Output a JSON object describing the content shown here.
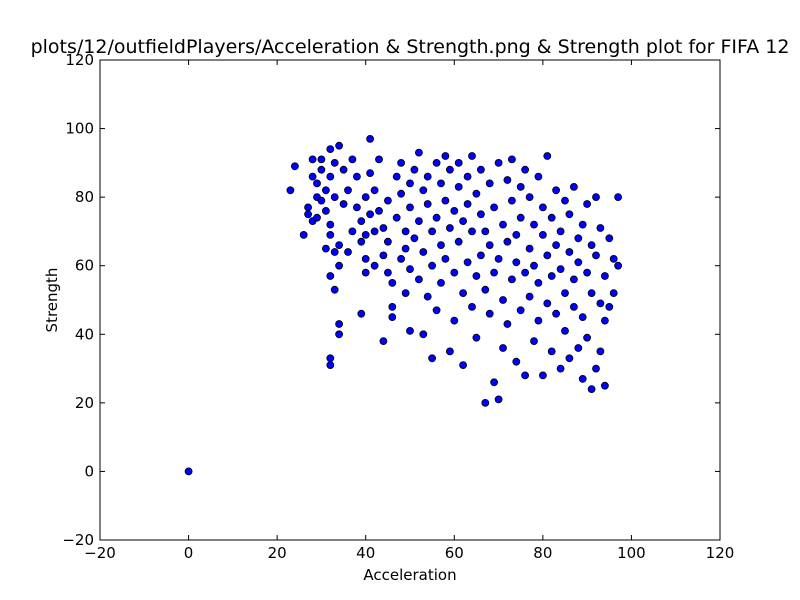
{
  "chart_data": {
    "type": "scatter",
    "title": "plots/12/outfieldPlayers/Acceleration & Strength.png & Strength plot for FIFA 12",
    "xlabel": "Acceleration",
    "ylabel": "Strength",
    "xlim": [
      -20,
      120
    ],
    "ylim": [
      -20,
      120
    ],
    "xticks": [
      -20,
      0,
      20,
      40,
      60,
      80,
      100,
      120
    ],
    "yticks": [
      -20,
      0,
      20,
      40,
      60,
      80,
      100,
      120
    ],
    "grid": false,
    "marker_color": "#0000ff",
    "series": [
      {
        "points": [
          [
            0,
            0
          ],
          [
            23,
            82
          ],
          [
            24,
            89
          ],
          [
            26,
            69
          ],
          [
            27,
            77
          ],
          [
            27,
            75
          ],
          [
            28,
            73
          ],
          [
            28,
            86
          ],
          [
            28,
            91
          ],
          [
            29,
            80
          ],
          [
            29,
            84
          ],
          [
            29,
            74
          ],
          [
            30,
            79
          ],
          [
            30,
            88
          ],
          [
            30,
            91
          ],
          [
            31,
            65
          ],
          [
            31,
            82
          ],
          [
            31,
            76
          ],
          [
            32,
            94
          ],
          [
            32,
            86
          ],
          [
            32,
            72
          ],
          [
            32,
            69
          ],
          [
            32,
            33
          ],
          [
            32,
            31
          ],
          [
            32,
            57
          ],
          [
            33,
            64
          ],
          [
            33,
            53
          ],
          [
            33,
            90
          ],
          [
            33,
            80
          ],
          [
            34,
            60
          ],
          [
            34,
            43
          ],
          [
            34,
            40
          ],
          [
            34,
            66
          ],
          [
            34,
            95
          ],
          [
            35,
            88
          ],
          [
            35,
            78
          ],
          [
            36,
            64
          ],
          [
            36,
            82
          ],
          [
            37,
            91
          ],
          [
            37,
            70
          ],
          [
            38,
            86
          ],
          [
            38,
            77
          ],
          [
            39,
            67
          ],
          [
            39,
            73
          ],
          [
            39,
            46
          ],
          [
            40,
            62
          ],
          [
            40,
            69
          ],
          [
            40,
            58
          ],
          [
            40,
            80
          ],
          [
            41,
            97
          ],
          [
            41,
            87
          ],
          [
            41,
            75
          ],
          [
            42,
            60
          ],
          [
            42,
            70
          ],
          [
            42,
            82
          ],
          [
            43,
            91
          ],
          [
            43,
            76
          ],
          [
            44,
            38
          ],
          [
            44,
            63
          ],
          [
            44,
            71
          ],
          [
            45,
            79
          ],
          [
            45,
            58
          ],
          [
            45,
            67
          ],
          [
            46,
            48
          ],
          [
            46,
            45
          ],
          [
            46,
            55
          ],
          [
            47,
            74
          ],
          [
            47,
            86
          ],
          [
            48,
            62
          ],
          [
            48,
            81
          ],
          [
            48,
            90
          ],
          [
            49,
            52
          ],
          [
            49,
            70
          ],
          [
            49,
            65
          ],
          [
            50,
            84
          ],
          [
            50,
            77
          ],
          [
            50,
            41
          ],
          [
            50,
            59
          ],
          [
            51,
            88
          ],
          [
            51,
            68
          ],
          [
            52,
            73
          ],
          [
            52,
            56
          ],
          [
            52,
            93
          ],
          [
            53,
            40
          ],
          [
            53,
            64
          ],
          [
            53,
            82
          ],
          [
            54,
            78
          ],
          [
            54,
            51
          ],
          [
            54,
            86
          ],
          [
            55,
            70
          ],
          [
            55,
            33
          ],
          [
            55,
            60
          ],
          [
            56,
            90
          ],
          [
            56,
            74
          ],
          [
            56,
            47
          ],
          [
            57,
            66
          ],
          [
            57,
            84
          ],
          [
            57,
            55
          ],
          [
            58,
            79
          ],
          [
            58,
            62
          ],
          [
            58,
            92
          ],
          [
            59,
            35
          ],
          [
            59,
            71
          ],
          [
            59,
            88
          ],
          [
            60,
            58
          ],
          [
            60,
            76
          ],
          [
            60,
            44
          ],
          [
            61,
            83
          ],
          [
            61,
            67
          ],
          [
            61,
            90
          ],
          [
            62,
            52
          ],
          [
            62,
            73
          ],
          [
            62,
            31
          ],
          [
            63,
            86
          ],
          [
            63,
            61
          ],
          [
            63,
            78
          ],
          [
            64,
            48
          ],
          [
            64,
            70
          ],
          [
            64,
            92
          ],
          [
            65,
            57
          ],
          [
            65,
            81
          ],
          [
            65,
            39
          ],
          [
            66,
            75
          ],
          [
            66,
            63
          ],
          [
            66,
            88
          ],
          [
            67,
            20
          ],
          [
            67,
            53
          ],
          [
            67,
            70
          ],
          [
            68,
            84
          ],
          [
            68,
            46
          ],
          [
            68,
            66
          ],
          [
            69,
            26
          ],
          [
            69,
            77
          ],
          [
            69,
            58
          ],
          [
            70,
            21
          ],
          [
            70,
            90
          ],
          [
            70,
            62
          ],
          [
            71,
            36
          ],
          [
            71,
            72
          ],
          [
            71,
            50
          ],
          [
            72,
            85
          ],
          [
            72,
            67
          ],
          [
            72,
            43
          ],
          [
            73,
            79
          ],
          [
            73,
            56
          ],
          [
            73,
            91
          ],
          [
            74,
            32
          ],
          [
            74,
            69
          ],
          [
            74,
            61
          ],
          [
            75,
            47
          ],
          [
            75,
            83
          ],
          [
            75,
            74
          ],
          [
            76,
            58
          ],
          [
            76,
            28
          ],
          [
            76,
            88
          ],
          [
            77,
            65
          ],
          [
            77,
            51
          ],
          [
            77,
            80
          ],
          [
            78,
            38
          ],
          [
            78,
            72
          ],
          [
            78,
            60
          ],
          [
            79,
            44
          ],
          [
            79,
            86
          ],
          [
            79,
            55
          ],
          [
            80,
            28
          ],
          [
            80,
            69
          ],
          [
            80,
            77
          ],
          [
            81,
            49
          ],
          [
            81,
            63
          ],
          [
            81,
            92
          ],
          [
            82,
            35
          ],
          [
            82,
            57
          ],
          [
            82,
            74
          ],
          [
            83,
            82
          ],
          [
            83,
            46
          ],
          [
            83,
            66
          ],
          [
            84,
            30
          ],
          [
            84,
            70
          ],
          [
            84,
            59
          ],
          [
            85,
            52
          ],
          [
            85,
            79
          ],
          [
            85,
            41
          ],
          [
            86,
            64
          ],
          [
            86,
            33
          ],
          [
            86,
            75
          ],
          [
            87,
            48
          ],
          [
            87,
            56
          ],
          [
            87,
            83
          ],
          [
            88,
            36
          ],
          [
            88,
            68
          ],
          [
            88,
            61
          ],
          [
            89,
            27
          ],
          [
            89,
            72
          ],
          [
            89,
            45
          ],
          [
            90,
            58
          ],
          [
            90,
            78
          ],
          [
            90,
            39
          ],
          [
            91,
            66
          ],
          [
            91,
            24
          ],
          [
            91,
            52
          ],
          [
            92,
            80
          ],
          [
            92,
            30
          ],
          [
            92,
            63
          ],
          [
            93,
            49
          ],
          [
            93,
            71
          ],
          [
            93,
            35
          ],
          [
            94,
            57
          ],
          [
            94,
            25
          ],
          [
            94,
            44
          ],
          [
            95,
            68
          ],
          [
            95,
            48
          ],
          [
            96,
            52
          ],
          [
            96,
            62
          ],
          [
            97,
            60
          ],
          [
            97,
            80
          ]
        ]
      }
    ]
  }
}
